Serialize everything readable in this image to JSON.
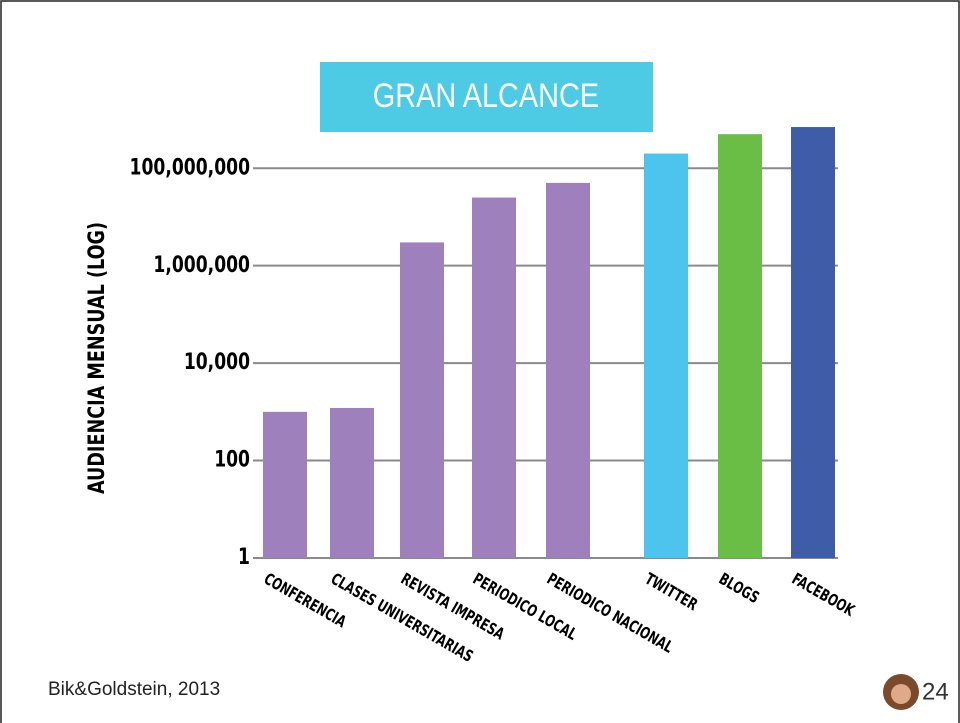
{
  "chart_data": {
    "type": "bar",
    "title": "GRAN ALCANCE",
    "y_label": "AUDIENCIA MENSUAL (LOG)",
    "categories": [
      "CONFERENCIA",
      "CLASES UNIVERSITARIAS",
      "REVISTA IMPRESA",
      "PERIODICO LOCAL",
      "PERIODICO NACIONAL",
      "TWITTER",
      "BLOGS",
      "FACEBOOK"
    ],
    "values": [
      1000,
      1200,
      3000000,
      25000000,
      50000000,
      200000000,
      500000000,
      700000000
    ],
    "colors": [
      "#9e80bd",
      "#9e80bd",
      "#9e80bd",
      "#9e80bd",
      "#9e80bd",
      "#4cc4ee",
      "#6abd45",
      "#3f5ca8"
    ],
    "ylim": [
      1,
      1000000000
    ],
    "log_scale": true,
    "grid": true,
    "yticks": [
      1,
      100,
      {
        "value": 10000,
        "label": "10,000"
      },
      {
        "value": 1000000,
        "label": "1,000,000"
      },
      {
        "value": 100000000,
        "label": "100,000,000"
      }
    ]
  },
  "footer": {
    "source": "Bik&Goldstein, 2013",
    "page": "24"
  }
}
